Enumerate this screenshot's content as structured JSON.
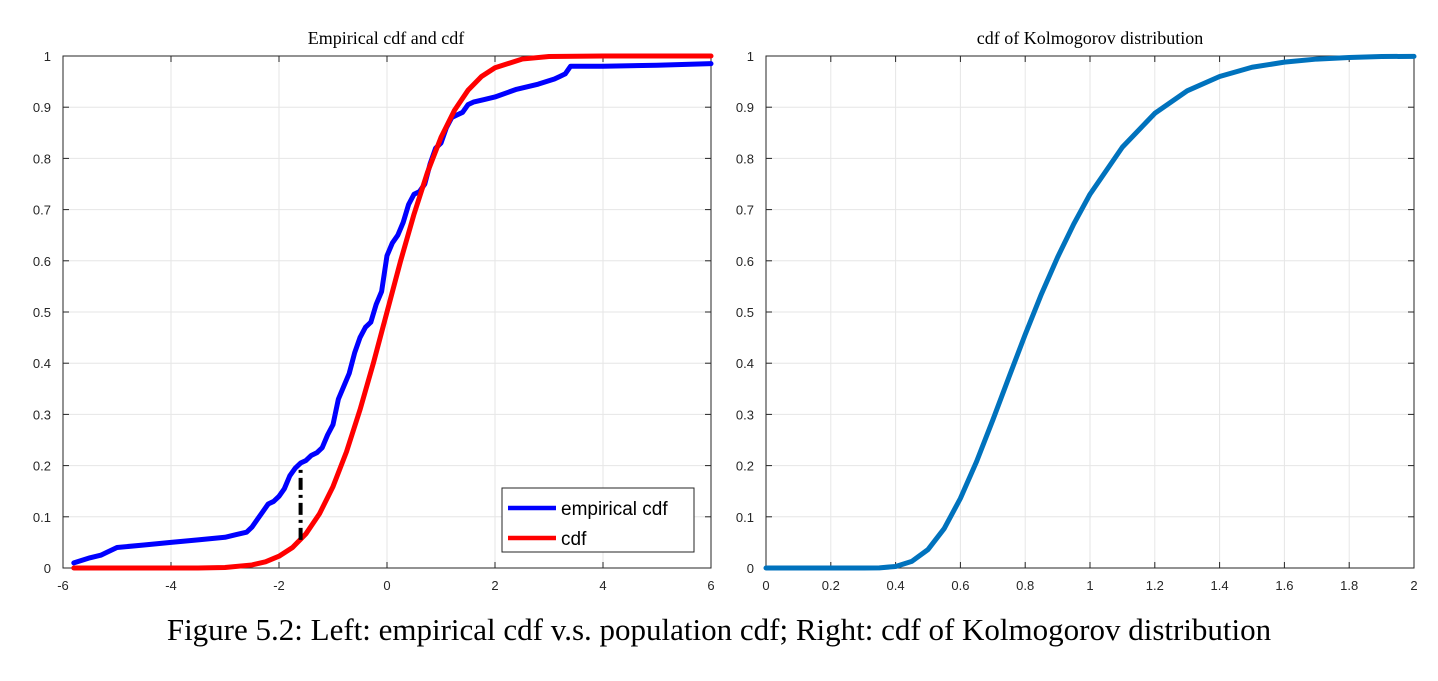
{
  "caption": "Figure 5.2: Left: empirical cdf v.s. population cdf; Right: cdf of Kolmogorov distribution",
  "chart_data": [
    {
      "type": "line",
      "title": "Empirical cdf and cdf",
      "xlabel": "",
      "ylabel": "",
      "xlim": [
        -6,
        6
      ],
      "ylim": [
        0,
        1
      ],
      "xticks": [
        -6,
        -4,
        -2,
        0,
        2,
        4,
        6
      ],
      "yticks": [
        0,
        0.1,
        0.2,
        0.3,
        0.4,
        0.5,
        0.6,
        0.7,
        0.8,
        0.9,
        1
      ],
      "grid": true,
      "legend_position": "bottom-right",
      "series": [
        {
          "name": "empirical cdf",
          "color": "#0000ff",
          "x": [
            -5.8,
            -5.5,
            -5.3,
            -5.2,
            -5.0,
            -4.5,
            -4.0,
            -3.5,
            -3.0,
            -2.8,
            -2.6,
            -2.5,
            -2.4,
            -2.3,
            -2.2,
            -2.1,
            -2.0,
            -1.9,
            -1.8,
            -1.7,
            -1.6,
            -1.5,
            -1.4,
            -1.3,
            -1.2,
            -1.1,
            -1.0,
            -0.9,
            -0.8,
            -0.7,
            -0.6,
            -0.5,
            -0.4,
            -0.3,
            -0.2,
            -0.1,
            0.0,
            0.1,
            0.2,
            0.3,
            0.4,
            0.5,
            0.6,
            0.7,
            0.8,
            0.9,
            1.0,
            1.1,
            1.2,
            1.3,
            1.4,
            1.5,
            1.6,
            1.8,
            2.0,
            2.4,
            2.8,
            3.1,
            3.2,
            3.3,
            3.4,
            3.6,
            4.0,
            5.0,
            6.0
          ],
          "y": [
            0.01,
            0.02,
            0.025,
            0.03,
            0.04,
            0.045,
            0.05,
            0.055,
            0.06,
            0.065,
            0.07,
            0.08,
            0.095,
            0.11,
            0.125,
            0.13,
            0.14,
            0.155,
            0.18,
            0.195,
            0.205,
            0.21,
            0.22,
            0.225,
            0.235,
            0.26,
            0.28,
            0.33,
            0.355,
            0.38,
            0.42,
            0.45,
            0.47,
            0.48,
            0.515,
            0.54,
            0.61,
            0.635,
            0.65,
            0.675,
            0.71,
            0.73,
            0.735,
            0.75,
            0.79,
            0.82,
            0.83,
            0.86,
            0.88,
            0.885,
            0.89,
            0.905,
            0.91,
            0.915,
            0.92,
            0.935,
            0.945,
            0.955,
            0.96,
            0.965,
            0.98,
            0.98,
            0.98,
            0.982,
            0.985
          ]
        },
        {
          "name": "cdf",
          "color": "#ff0000",
          "x": [
            -5.8,
            -5.0,
            -4.0,
            -3.5,
            -3.0,
            -2.5,
            -2.25,
            -2.0,
            -1.75,
            -1.5,
            -1.25,
            -1.0,
            -0.75,
            -0.5,
            -0.25,
            0.0,
            0.25,
            0.5,
            0.75,
            1.0,
            1.25,
            1.5,
            1.75,
            2.0,
            2.5,
            3.0,
            4.0,
            5.0,
            6.0
          ],
          "y": [
            0.0,
            0.0,
            0.0,
            0.0,
            0.001,
            0.006,
            0.012,
            0.023,
            0.04,
            0.067,
            0.106,
            0.159,
            0.227,
            0.309,
            0.401,
            0.5,
            0.599,
            0.691,
            0.773,
            0.841,
            0.894,
            0.933,
            0.96,
            0.977,
            0.994,
            0.999,
            1.0,
            1.0,
            1.0
          ]
        }
      ],
      "annotation": {
        "style": "black dash-dot vertical line (maximum distance)",
        "x": -1.6,
        "y_from": 0.055,
        "y_to": 0.2
      }
    },
    {
      "type": "line",
      "title": "cdf of Kolmogorov distribution",
      "xlabel": "",
      "ylabel": "",
      "xlim": [
        0,
        2
      ],
      "ylim": [
        0,
        1
      ],
      "xticks": [
        0,
        0.2,
        0.4,
        0.6,
        0.8,
        1,
        1.2,
        1.4,
        1.6,
        1.8,
        2
      ],
      "yticks": [
        0,
        0.1,
        0.2,
        0.3,
        0.4,
        0.5,
        0.6,
        0.7,
        0.8,
        0.9,
        1
      ],
      "grid": true,
      "series": [
        {
          "color": "#0072bd",
          "x": [
            0.0,
            0.2,
            0.3,
            0.35,
            0.4,
            0.45,
            0.5,
            0.55,
            0.6,
            0.65,
            0.7,
            0.75,
            0.8,
            0.85,
            0.9,
            0.95,
            1.0,
            1.1,
            1.2,
            1.3,
            1.4,
            1.5,
            1.6,
            1.7,
            1.8,
            1.9,
            2.0
          ],
          "y": [
            0.0,
            0.0,
            0.0,
            0.0003,
            0.003,
            0.013,
            0.036,
            0.077,
            0.136,
            0.208,
            0.289,
            0.373,
            0.456,
            0.535,
            0.607,
            0.672,
            0.73,
            0.822,
            0.888,
            0.932,
            0.96,
            0.978,
            0.988,
            0.994,
            0.997,
            0.999,
            0.9993
          ]
        }
      ]
    }
  ]
}
